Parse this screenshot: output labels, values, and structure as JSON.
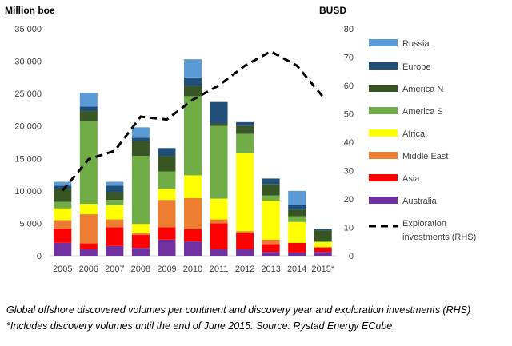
{
  "chart_data": {
    "type": "bar",
    "stacked": true,
    "ylabel": "Million boe",
    "y2label": "BUSD",
    "ylim": [
      0,
      35000
    ],
    "y2lim": [
      0,
      80
    ],
    "yticks": [
      "0",
      "5 000",
      "10 000",
      "15 000",
      "20 000",
      "25 000",
      "30 000",
      "35 000"
    ],
    "y2ticks": [
      "0",
      "10",
      "20",
      "30",
      "40",
      "50",
      "60",
      "70",
      "80"
    ],
    "categories": [
      "2005",
      "2006",
      "2007",
      "2008",
      "2009",
      "2010",
      "2011",
      "2012",
      "2013",
      "2014",
      "2015*"
    ],
    "series": [
      {
        "name": "Australia",
        "color": "#7030A0",
        "values": [
          2000,
          1000,
          1500,
          1200,
          2500,
          2200,
          1000,
          1000,
          600,
          500,
          600
        ]
      },
      {
        "name": "Asia",
        "color": "#FF0000",
        "values": [
          2200,
          900,
          2900,
          2000,
          1900,
          1900,
          4000,
          2500,
          1200,
          1500,
          700
        ]
      },
      {
        "name": "Middle East",
        "color": "#ED7D31",
        "values": [
          1300,
          4500,
          1200,
          300,
          4200,
          4800,
          600,
          300,
          700,
          0,
          0
        ]
      },
      {
        "name": "Africa",
        "color": "#FFFF00",
        "values": [
          1800,
          1600,
          2200,
          1400,
          1700,
          3500,
          3200,
          12000,
          6000,
          3200,
          800
        ]
      },
      {
        "name": "America S",
        "color": "#70AD47",
        "values": [
          1000,
          12700,
          800,
          10500,
          2700,
          12200,
          11200,
          3000,
          800,
          900,
          200
        ]
      },
      {
        "name": "America N",
        "color": "#375623",
        "values": [
          2000,
          1600,
          1200,
          2300,
          2400,
          1600,
          400,
          1200,
          1700,
          1000,
          1600
        ]
      },
      {
        "name": "Europe",
        "color": "#1F4E79",
        "values": [
          500,
          700,
          1000,
          500,
          1200,
          1300,
          3300,
          600,
          900,
          700,
          200
        ]
      },
      {
        "name": "Russia",
        "color": "#5B9BD5",
        "values": [
          600,
          2100,
          600,
          1600,
          0,
          2800,
          0,
          0,
          0,
          2200,
          0
        ]
      }
    ],
    "line": {
      "name": "Exploration investments (RHS)",
      "axis": "right",
      "style": "dashed",
      "color": "#000000",
      "values": [
        23,
        34,
        37,
        49,
        48,
        55,
        60,
        67,
        72,
        67,
        56
      ]
    },
    "legend_placement": "right",
    "grid": false
  },
  "caption": "Global offshore discovered volumes per continent and discovery year and exploration investments (RHS) *Includes discovery volumes until the end of June 2015. Source: Rystad Energy ECube",
  "legend": {
    "russia": "Russia",
    "europe": "Europe",
    "america_n": "America N",
    "america_s": "America S",
    "africa": "Africa",
    "middle_east": "Middle East",
    "asia": "Asia",
    "australia": "Australia",
    "investments_line1": "Exploration",
    "investments_line2": "investments (RHS)"
  }
}
